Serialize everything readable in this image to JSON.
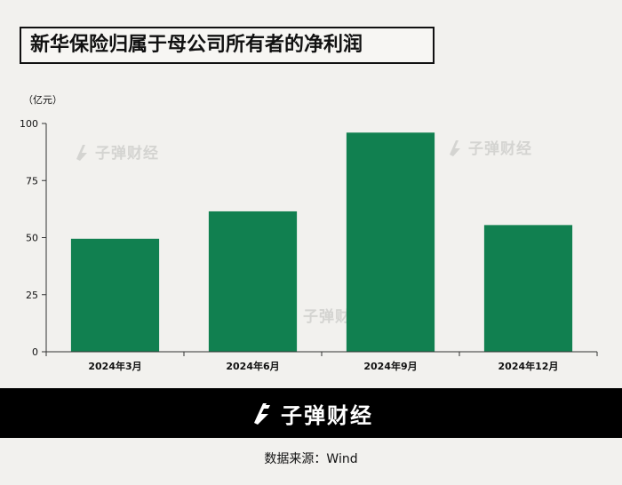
{
  "title": "新华保险归属于母公司所有者的净利润",
  "unit_label": "（亿元）",
  "watermark_text": "子弹财经",
  "brand_text": "子弹财经",
  "source_text": "数据来源：Wind",
  "colors": {
    "bar": "#118050",
    "axis": "#333333",
    "background": "#f2f1ee",
    "banner": "#000000"
  },
  "chart_data": {
    "type": "bar",
    "categories": [
      "2024年3月",
      "2024年6月",
      "2024年9月",
      "2024年12月"
    ],
    "values": [
      49.5,
      61.5,
      96,
      55.5
    ],
    "title": "新华保险归属于母公司所有者的净利润",
    "ylabel": "（亿元）",
    "xlabel": "",
    "ylim": [
      0,
      100
    ],
    "yticks": [
      0,
      25,
      50,
      75,
      100
    ],
    "grid": false,
    "legend": "none"
  }
}
